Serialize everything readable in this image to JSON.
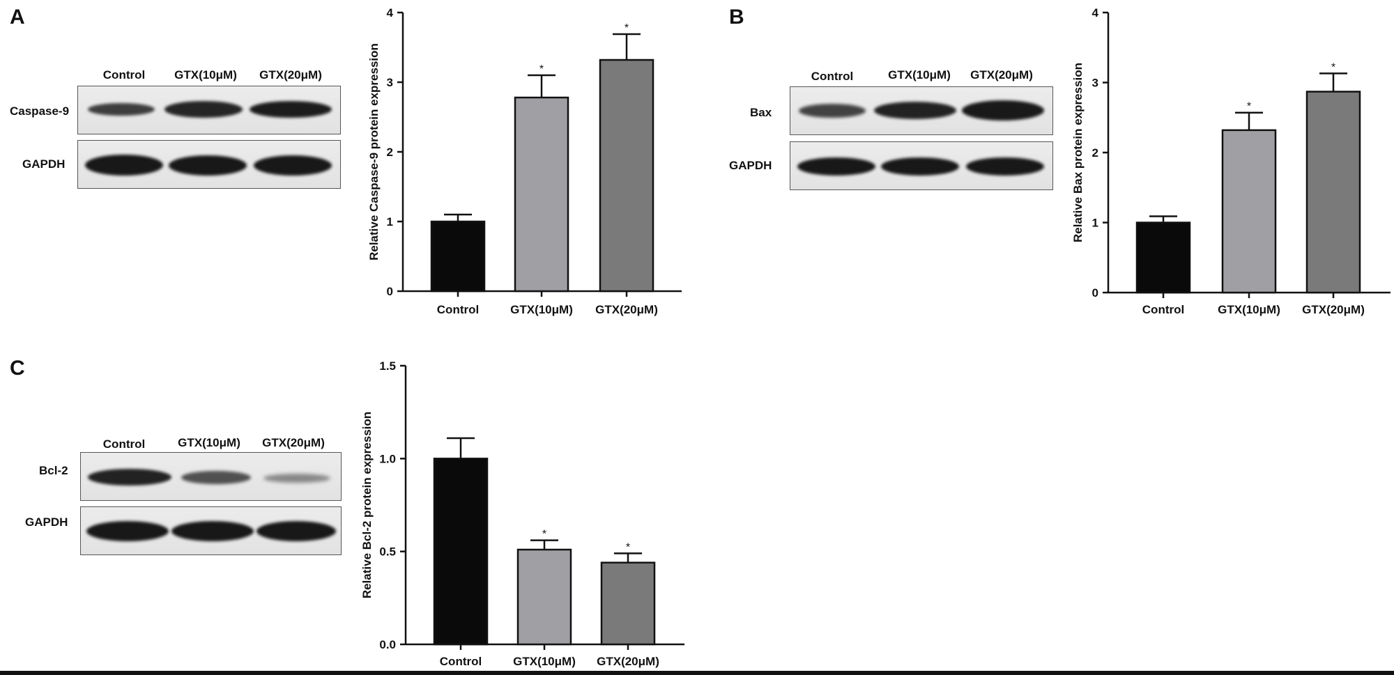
{
  "figure": {
    "panels": [
      {
        "letter": "A",
        "blot": {
          "lanes": [
            "Control",
            "GTX(10μM)",
            "GTX(20μM)"
          ],
          "rows": [
            "Caspase-9",
            "GAPDH"
          ]
        },
        "ylabel": "Relative Caspase-9 protein expression"
      },
      {
        "letter": "B",
        "blot": {
          "lanes": [
            "Control",
            "GTX(10μM)",
            "GTX(20μM)"
          ],
          "rows": [
            "Bax",
            "GAPDH"
          ]
        },
        "ylabel": "Relative Bax protein expression"
      },
      {
        "letter": "C",
        "blot": {
          "lanes": [
            "Control",
            "GTX(10μM)",
            "GTX(20μM)"
          ],
          "rows": [
            "Bcl-2",
            "GAPDH"
          ]
        },
        "ylabel": "Relative Bcl-2 protein expression"
      }
    ]
  },
  "colors": {
    "control": "#0a0a0a",
    "gtx10": "#a0a0a4",
    "gtx20": "#7a7a7a",
    "axis": "#111111"
  },
  "chart_data": [
    {
      "type": "bar",
      "categories": [
        "Control",
        "GTX(10μM)",
        "GTX(20μM)"
      ],
      "values": [
        1.0,
        2.78,
        3.32
      ],
      "errors": [
        0.1,
        0.32,
        0.37
      ],
      "significance": [
        "",
        "*",
        "*"
      ],
      "ylabel": "Relative Caspase-9 protein expression",
      "ylim": [
        0,
        4
      ],
      "yticks": [
        "0",
        "1",
        "2",
        "3",
        "4"
      ],
      "grid": false
    },
    {
      "type": "bar",
      "categories": [
        "Control",
        "GTX(10μM)",
        "GTX(20μM)"
      ],
      "values": [
        1.0,
        2.32,
        2.87
      ],
      "errors": [
        0.09,
        0.25,
        0.26
      ],
      "significance": [
        "",
        "*",
        "*"
      ],
      "ylabel": "Relative Bax protein expression",
      "ylim": [
        0,
        4
      ],
      "yticks": [
        "0",
        "1",
        "2",
        "3",
        "4"
      ],
      "grid": false
    },
    {
      "type": "bar",
      "categories": [
        "Control",
        "GTX(10μM)",
        "GTX(20μM)"
      ],
      "values": [
        1.0,
        0.51,
        0.44
      ],
      "errors": [
        0.11,
        0.05,
        0.05
      ],
      "significance": [
        "",
        "*",
        "*"
      ],
      "ylabel": "Relative Bcl-2 protein expression",
      "ylim": [
        0,
        1.5
      ],
      "yticks": [
        "0.0",
        "0.5",
        "1.0",
        "1.5"
      ],
      "grid": false
    }
  ]
}
